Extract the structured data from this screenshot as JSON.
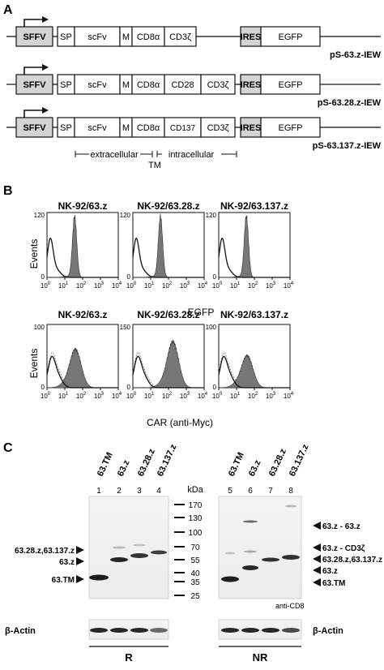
{
  "panel_a": {
    "letter": "A",
    "constructs": [
      {
        "name": "pS-63.z-IEW",
        "segments": [
          "SFFV",
          "SP",
          "scFv",
          "M",
          "CD8α",
          "CD3ζ",
          "IRES",
          "EGFP"
        ]
      },
      {
        "name": "pS-63.28.z-IEW",
        "segments": [
          "SFFV",
          "SP",
          "scFv",
          "M",
          "CD8α",
          "CD28",
          "CD3ζ",
          "IRES",
          "EGFP"
        ]
      },
      {
        "name": "pS-63.137.z-IEW",
        "segments": [
          "SFFV",
          "SP",
          "scFv",
          "M",
          "CD8α",
          "CD137",
          "CD3ζ",
          "IRES",
          "EGFP"
        ]
      }
    ],
    "domain_labels": {
      "extracellular": "extracellular",
      "tm": "TM",
      "intracellular": "intracellular"
    }
  },
  "panel_b": {
    "letter": "B",
    "y_axis_label": "Events",
    "row1_xlabel": "EGFP",
    "row2_xlabel": "CAR (anti-Myc)",
    "x_ticks": [
      "10",
      "10",
      "10",
      "10",
      "10"
    ],
    "x_tick_exps": [
      "0",
      "1",
      "2",
      "3",
      "4"
    ],
    "row1": [
      {
        "title": "NK-92/63.z",
        "ymax": "120"
      },
      {
        "title": "NK-92/63.28.z",
        "ymax": "120"
      },
      {
        "title": "NK-92/63.137.z",
        "ymax": "120"
      }
    ],
    "row2": [
      {
        "title": "NK-92/63.z",
        "ymax": "100"
      },
      {
        "title": "NK-92/63.28.z",
        "ymax": "150"
      },
      {
        "title": "NK-92/63.137.z",
        "ymax": "100"
      }
    ],
    "y_zero": "0"
  },
  "panel_c": {
    "letter": "C",
    "lane_labels_left": [
      "63.TM",
      "63.z",
      "63.28.z",
      "63.137.z"
    ],
    "lane_labels_right": [
      "63.TM",
      "63.z",
      "63.28.z",
      "63.137.z"
    ],
    "lane_numbers_left": [
      "1",
      "2",
      "3",
      "4"
    ],
    "lane_numbers_right": [
      "5",
      "6",
      "7",
      "8"
    ],
    "kda_label": "kDa",
    "markers": [
      "170",
      "130",
      "100",
      "70",
      "55",
      "40",
      "35",
      "25"
    ],
    "left_band_labels": [
      "63.28.z,63.137.z",
      "63.z",
      "63.TM"
    ],
    "right_band_labels": [
      "63.z - 63.z",
      "63.z - CD3ζ",
      "63.28.z,63.137.z",
      "63.z",
      "63.TM"
    ],
    "antibody_label": "anti-CD8",
    "actin_label": "β-Actin",
    "condition_left": "R",
    "condition_right": "NR"
  }
}
